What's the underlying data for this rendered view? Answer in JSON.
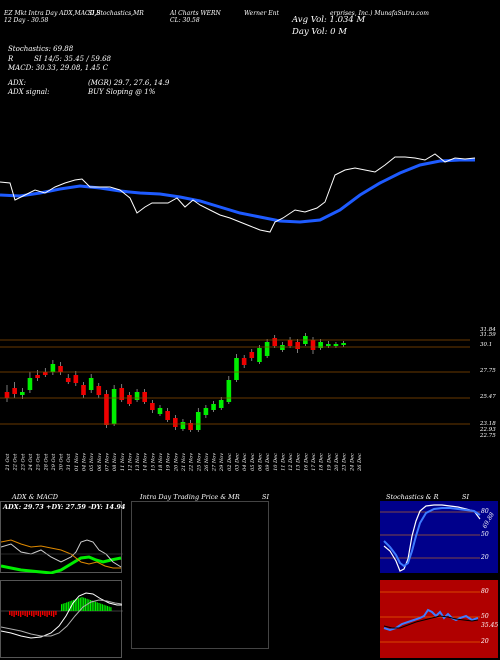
{
  "header": {
    "col1_line1": "EZ Mkt Intra Day ADX,MACD,B",
    "col1_line2": "12 Day - 30.58",
    "col2_line1": "SI,Stochastics,MR",
    "col3_line1": "Al Charts WERN",
    "col3_line2": "CL: 30.58",
    "col4_line1": "Werner Ent",
    "col4_tail": "erprises, Inc.) MunafaSutra.com",
    "avg_vol": "Avg Vol: 1.034  M",
    "day_vol": "Day Vol: 0  M"
  },
  "info": {
    "stochastics": "Stochastics: 69.88",
    "rsi_label": "R",
    "rsi": "SI 14/5: 35.45 / 59.68",
    "macd": "MACD: 30.33, 29.08, 1.45 C",
    "adx_label": "ADX:",
    "adx_vals": "(MGR) 29.7, 27.6, 14.9",
    "adx_signal_label": "ADX  signal:",
    "buy_signal": "BUY Sloping @ 1%"
  },
  "price_axis": [
    "31.84",
    "31.59",
    "30.1",
    "27.75",
    "25.47",
    "23.18",
    "22.93",
    "22.75"
  ],
  "dates": [
    "21 Oct",
    "22 Oct",
    "23 Oct",
    "24 Oct",
    "25 Oct",
    "28 Oct",
    "29 Oct",
    "30 Oct",
    "31 Oct",
    "01 Nov",
    "04 Nov",
    "05 Nov",
    "06 Nov",
    "07 Nov",
    "08 Nov",
    "11 Nov",
    "12 Nov",
    "13 Nov",
    "14 Nov",
    "15 Nov",
    "18 Nov",
    "19 Nov",
    "20 Nov",
    "21 Nov",
    "22 Nov",
    "25 Nov",
    "26 Nov",
    "27 Nov",
    "29 Nov",
    "02 Dec",
    "03 Dec",
    "04 Dec",
    "05 Dec",
    "06 Dec",
    "09 Dec",
    "10 Dec",
    "11 Dec",
    "12 Dec",
    "13 Dec",
    "16 Dec",
    "17 Dec",
    "18 Dec",
    "19 Dec",
    "20 Dec",
    "23 Dec",
    "24 Dec",
    "26 Dec"
  ],
  "panels": {
    "adx_title": "ADX  & MACD",
    "adx_readout": "ADX: 29.73  +DY: 27.59  -DY: 14.94",
    "intra_title": "Intra Day Trading Price  & MR",
    "intra_title_tail": "SI",
    "stoch_title": "Stochastics & R",
    "stoch_title_tail": "SI",
    "stoch_levels": [
      "80",
      "50",
      "20"
    ],
    "stoch_value": "69.88",
    "rsi_levels": [
      "80",
      "50",
      "20"
    ],
    "rsi_value": "35.45"
  },
  "colors": {
    "up": "#00ee00",
    "down": "#ee0000",
    "ema": "#1e5bff",
    "gridline": "#8a4a00",
    "rsi_bg": "#b00000",
    "stoch_bg": "#00008b"
  }
}
